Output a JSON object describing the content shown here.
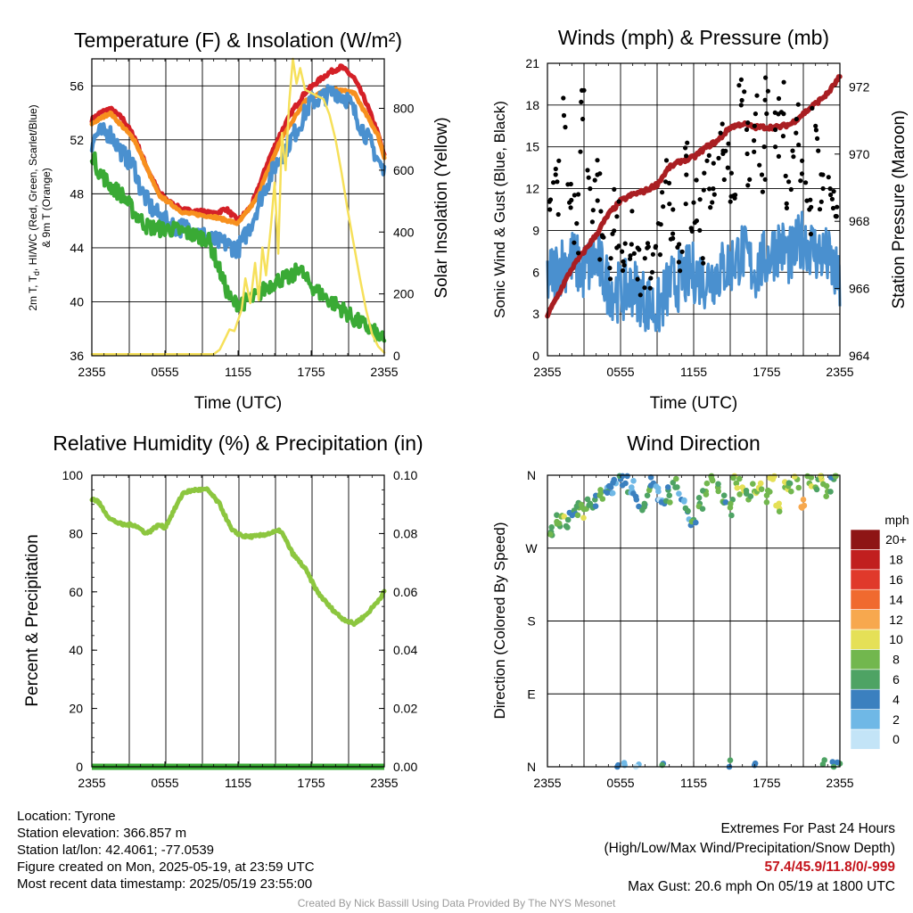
{
  "footer": {
    "location": "Location: Tyrone",
    "elevation": "Station elevation: 366.857 m",
    "latlon": "Station lat/lon: 42.4061; -77.0539",
    "created": "Figure created on Mon, 2025-05-19, at 23:59 UTC",
    "recent": "Most recent data timestamp: 2025/05/19 23:55:00",
    "extremes_title": "Extremes For Past 24 Hours",
    "extremes_legend": "(High/Low/Max Wind/Precipitation/Snow Depth)",
    "extremes_values": "57.4/45.9/11.8/0/-999",
    "max_gust": "Max Gust: 20.6 mph On 05/19 at 1800 UTC",
    "credit": "Created By Nick Bassill Using Data Provided By The NYS Mesonet"
  },
  "chart_data": [
    {
      "type": "line",
      "title": "Temperature (F) & Insolation (W/m²)",
      "xlabel": "Time (UTC)",
      "ylabel": "2m T, T_d, HI/WC (Red, Green, Scarlet/Blue) & 9m T (Orange)",
      "ylabel_lines": [
        "2m T, T",
        "d",
        ", HI/WC (Red, Green, Scarlet/Blue)",
        "& 9m T (Orange)"
      ],
      "ylabel_right": "Solar Insolation (Yellow)",
      "x_ticks": [
        "2355",
        "0555",
        "1155",
        "1755",
        "2355"
      ],
      "x_range_hours": [
        0,
        24
      ],
      "ylim": [
        36,
        58
      ],
      "y_ticks": [
        36,
        40,
        44,
        48,
        52,
        56
      ],
      "ylim_right": [
        0,
        960
      ],
      "y_ticks_right": [
        0,
        200,
        400,
        600,
        800
      ],
      "grid": true,
      "series": [
        {
          "name": "2m T",
          "color": "#d42027",
          "axis": "left",
          "x": [
            0,
            0.7,
            1.5,
            2.5,
            3.5,
            4.5,
            5.5,
            6.5,
            7.5,
            9,
            10,
            11,
            12,
            13,
            13.5,
            14.5,
            15.5,
            16.5,
            17.5,
            18.5,
            19.5,
            20.5,
            21.5,
            22.5,
            23.5,
            24
          ],
          "y": [
            53.5,
            54,
            54.3,
            53.6,
            52.2,
            50.0,
            48.1,
            47.3,
            46.8,
            46.7,
            46.5,
            46.9,
            46.0,
            47.0,
            48.0,
            50.5,
            52.5,
            54.2,
            55.5,
            56.3,
            57.0,
            57.4,
            56.6,
            54.8,
            52.4,
            50.8
          ]
        },
        {
          "name": "9m T",
          "color": "#f7901e",
          "axis": "left",
          "x": [
            0,
            1.5,
            3.5,
            5.5,
            7.5,
            10,
            12,
            13.5,
            15.5,
            17.5,
            19.5,
            21.5,
            23.5,
            24
          ],
          "y": [
            53.2,
            54.0,
            52.0,
            47.9,
            46.6,
            46.3,
            45.8,
            47.6,
            52.0,
            54.9,
            55.8,
            55.5,
            52.3,
            50.7
          ]
        },
        {
          "name": "HI/WC",
          "color": "#4a90cf",
          "axis": "left",
          "x": [
            0,
            0.5,
            1.5,
            2.5,
            3.5,
            4.0,
            5.0,
            6.0,
            7.0,
            8.0,
            9.0,
            10.0,
            11.0,
            12.0,
            13.0,
            14.0,
            15.0,
            16.0,
            17.0,
            17.5,
            18.0,
            19.0,
            20.0,
            21.0,
            22.0,
            23.0,
            24
          ],
          "y": [
            51.8,
            52.5,
            52.5,
            51.0,
            50.0,
            48.3,
            46.8,
            46.0,
            45.5,
            45.5,
            45.0,
            44.5,
            44.3,
            43.9,
            45.6,
            48.0,
            50.0,
            51.5,
            53.0,
            54.0,
            54.8,
            55.2,
            55.6,
            55.0,
            53.2,
            51.5,
            49.5
          ]
        },
        {
          "name": "T_d",
          "color": "#3aaa35",
          "axis": "left",
          "x": [
            0,
            0.5,
            1.5,
            2.5,
            3.5,
            4.5,
            5.5,
            6.5,
            7.5,
            8.5,
            9.5,
            10.5,
            11.0,
            11.5,
            12.5,
            13.5,
            14.5,
            15.5,
            16.5,
            17.0,
            17.5,
            18.5,
            19.5,
            20.5,
            21.5,
            22.5,
            23.5,
            24
          ],
          "y": [
            51.0,
            49.8,
            48.6,
            47.9,
            46.6,
            45.6,
            45.4,
            45.4,
            45.2,
            44.9,
            44.7,
            42.3,
            41.0,
            39.9,
            40.0,
            40.4,
            41.2,
            41.7,
            41.8,
            42.7,
            41.7,
            40.8,
            40.1,
            39.5,
            38.7,
            38.2,
            37.5,
            37.0
          ]
        },
        {
          "name": "Solar Insolation",
          "color": "#f6e05a",
          "axis": "right",
          "x": [
            0,
            10.0,
            10.5,
            11.0,
            11.3,
            11.7,
            12.0,
            12.3,
            12.6,
            13.0,
            13.4,
            13.7,
            14.0,
            14.3,
            14.7,
            15.0,
            15.3,
            15.6,
            15.9,
            16.2,
            16.5,
            16.8,
            17.1,
            17.5,
            18.0,
            18.5,
            19.0,
            19.5,
            20.0,
            20.5,
            21.0,
            21.5,
            22.0,
            22.5,
            23.0,
            23.5,
            24
          ],
          "y": [
            5,
            5,
            20,
            60,
            85,
            80,
            115,
            150,
            250,
            170,
            300,
            180,
            350,
            260,
            420,
            560,
            330,
            720,
            600,
            820,
            960,
            880,
            930,
            860,
            850,
            840,
            830,
            780,
            700,
            590,
            470,
            360,
            250,
            150,
            70,
            30,
            10
          ]
        }
      ]
    },
    {
      "type": "line",
      "title": "Winds (mph) & Pressure (mb)",
      "xlabel": "Time (UTC)",
      "ylabel": "Sonic Wind & Gust (Blue, Black)",
      "ylabel_right": "Station Pressure (Maroon)",
      "x_ticks": [
        "2355",
        "0555",
        "1155",
        "1755",
        "2355"
      ],
      "ylim": [
        0,
        21
      ],
      "y_ticks": [
        0,
        3,
        6,
        9,
        12,
        15,
        18,
        21
      ],
      "ylim_right": [
        964,
        972.7
      ],
      "y_ticks_right": [
        964,
        966,
        968,
        970,
        972
      ],
      "grid": true,
      "series": [
        {
          "name": "Sonic Wind",
          "color": "#4a90cf",
          "axis": "left",
          "x": [
            0,
            1,
            2,
            3,
            4,
            5,
            6,
            7,
            8,
            9,
            10,
            11,
            12,
            13,
            14,
            15,
            16,
            17,
            18,
            19,
            20,
            21,
            22,
            23,
            24
          ],
          "y": [
            5.5,
            6.5,
            7.0,
            6.0,
            7.0,
            5.0,
            4.5,
            5.0,
            4.0,
            3.2,
            5.0,
            5.5,
            6.0,
            5.5,
            6.0,
            6.5,
            7.5,
            6.0,
            7.0,
            8.0,
            7.0,
            8.5,
            7.5,
            7.0,
            5.0
          ]
        },
        {
          "name": "Station Pressure",
          "color": "#a91e22",
          "axis": "right",
          "x": [
            0,
            1,
            2,
            3,
            4,
            5,
            6,
            7,
            8,
            9,
            10,
            11,
            12,
            13,
            14,
            15,
            16,
            17,
            18,
            19,
            20,
            21,
            22,
            23,
            24
          ],
          "y": [
            965.2,
            965.9,
            966.6,
            967.1,
            967.6,
            968.2,
            968.6,
            968.8,
            968.9,
            969.1,
            969.6,
            969.8,
            969.9,
            970.2,
            970.4,
            970.8,
            970.9,
            970.8,
            970.8,
            970.8,
            970.9,
            971.2,
            971.5,
            971.8,
            972.3
          ]
        },
        {
          "name": "Gust",
          "color": "#000000",
          "axis": "left",
          "style": "points",
          "x": [
            0.2,
            0.8,
            1.3,
            1.8,
            2.4,
            2.9,
            3.5,
            4.1,
            4.6,
            5.2,
            5.7,
            6.3,
            6.9,
            7.4,
            8.0,
            8.6,
            9.1,
            9.7,
            10.3,
            10.8,
            11.4,
            12.0,
            12.5,
            13.1,
            13.6,
            14.2,
            14.8,
            15.3,
            15.9,
            16.4,
            17.0,
            17.6,
            18.1,
            18.7,
            19.2,
            19.8,
            20.4,
            20.9,
            21.5,
            22.0,
            22.6,
            23.2,
            23.7
          ],
          "y": [
            10.5,
            12.5,
            18.5,
            11.0,
            9.5,
            17.0,
            12.0,
            13.0,
            8.5,
            7.0,
            10.0,
            6.5,
            8.0,
            5.5,
            7.0,
            6.0,
            9.5,
            12.5,
            10.5,
            8.0,
            13.0,
            11.0,
            9.0,
            14.0,
            12.0,
            16.0,
            13.5,
            11.5,
            18.0,
            14.5,
            16.5,
            13.0,
            19.0,
            15.0,
            17.5,
            12.5,
            16.0,
            14.0,
            10.5,
            16.5,
            13.0,
            12.0,
            10.0
          ]
        }
      ]
    },
    {
      "type": "line",
      "title": "Relative Humidity (%) & Precipitation (in)",
      "ylabel": "Percent & Precipitation",
      "x_ticks": [
        "2355",
        "0555",
        "1155",
        "1755",
        "2355"
      ],
      "ylim": [
        0,
        100
      ],
      "y_ticks": [
        0,
        20,
        40,
        60,
        80,
        100
      ],
      "ylim_right": [
        0,
        0.1
      ],
      "y_ticks_right": [
        "0.00",
        "0.02",
        "0.04",
        "0.06",
        "0.08",
        "0.10"
      ],
      "grid": true,
      "series": [
        {
          "name": "Relative Humidity",
          "color": "#8cc63f",
          "axis": "left",
          "x": [
            0,
            0.5,
            1.5,
            2.5,
            3.5,
            4.5,
            5.5,
            6.0,
            6.5,
            7.5,
            8.5,
            9.5,
            10.5,
            11.5,
            12.5,
            13.5,
            14.5,
            15.5,
            16.5,
            17.5,
            18.5,
            19.5,
            20.5,
            21.0,
            21.5,
            22.5,
            23.5,
            24
          ],
          "y": [
            92,
            91,
            85,
            83,
            83,
            80,
            83,
            82,
            86,
            94,
            95,
            95,
            90,
            81,
            79,
            79,
            80,
            81,
            73,
            68,
            60,
            55,
            51,
            50,
            49,
            52,
            57,
            60
          ]
        },
        {
          "name": "Precipitation",
          "color": "#3aaa35",
          "axis": "right",
          "x": [
            0,
            24
          ],
          "y": [
            0,
            0
          ]
        }
      ]
    },
    {
      "type": "scatter",
      "title": "Wind Direction",
      "ylabel": "Direction (Colored By Speed)",
      "x_ticks": [
        "2355",
        "0555",
        "1155",
        "1755",
        "2355"
      ],
      "y_ticks": [
        "N",
        "E",
        "S",
        "W",
        "N"
      ],
      "ylim": [
        0,
        360
      ],
      "grid": true,
      "colorbar_title": "mph",
      "colorbar_labels": [
        "0",
        "2",
        "4",
        "6",
        "8",
        "10",
        "12",
        "14",
        "16",
        "18",
        "20+"
      ],
      "colorbar_colors": [
        "#c3e4f7",
        "#6fb8e6",
        "#3b80bf",
        "#4ea364",
        "#72b74e",
        "#e5e057",
        "#f7a84e",
        "#f06a2f",
        "#e0392b",
        "#c11f1f",
        "#8e1515"
      ],
      "series": [
        {
          "name": "Direction",
          "x": [
            0.3,
            0.8,
            1.2,
            1.7,
            2.2,
            2.6,
            3.0,
            3.5,
            3.9,
            4.3,
            4.8,
            5.2,
            5.6,
            6.0,
            6.4,
            6.9,
            7.3,
            7.8,
            8.2,
            8.7,
            9.1,
            9.6,
            10.0,
            10.5,
            11.0,
            11.5,
            12.0,
            12.5,
            13.0,
            13.5,
            14.0,
            14.5,
            15.0,
            15.5,
            16.0,
            16.5,
            17.0,
            17.5,
            18.0,
            18.5,
            19.0,
            19.5,
            20.0,
            20.5,
            21.0,
            21.5,
            22.0,
            22.5,
            23.0,
            23.5,
            5.8,
            6.3,
            7.5,
            9.5,
            15.0,
            17.0,
            22.6,
            23.4,
            24.0
          ],
          "y": [
            290,
            300,
            310,
            305,
            315,
            320,
            318,
            325,
            330,
            335,
            340,
            345,
            350,
            355,
            350,
            345,
            330,
            320,
            335,
            350,
            340,
            325,
            335,
            345,
            330,
            315,
            305,
            325,
            340,
            355,
            345,
            335,
            320,
            350,
            345,
            330,
            340,
            350,
            335,
            355,
            325,
            345,
            340,
            355,
            330,
            350,
            345,
            355,
            340,
            355,
            2,
            5,
            3,
            4,
            8,
            2,
            3,
            6,
            4
          ],
          "speed": [
            6,
            7,
            8,
            6,
            5,
            7,
            8,
            6,
            5,
            7,
            4,
            3,
            2,
            3,
            4,
            2,
            3,
            4,
            5,
            3,
            2,
            4,
            5,
            6,
            3,
            4,
            5,
            6,
            7,
            8,
            6,
            5,
            7,
            8,
            9,
            7,
            8,
            9,
            8,
            10,
            9,
            8,
            7,
            9,
            11,
            8,
            7,
            9,
            8,
            6,
            3,
            2,
            2,
            3,
            5,
            4,
            6,
            4,
            5
          ]
        }
      ]
    }
  ]
}
